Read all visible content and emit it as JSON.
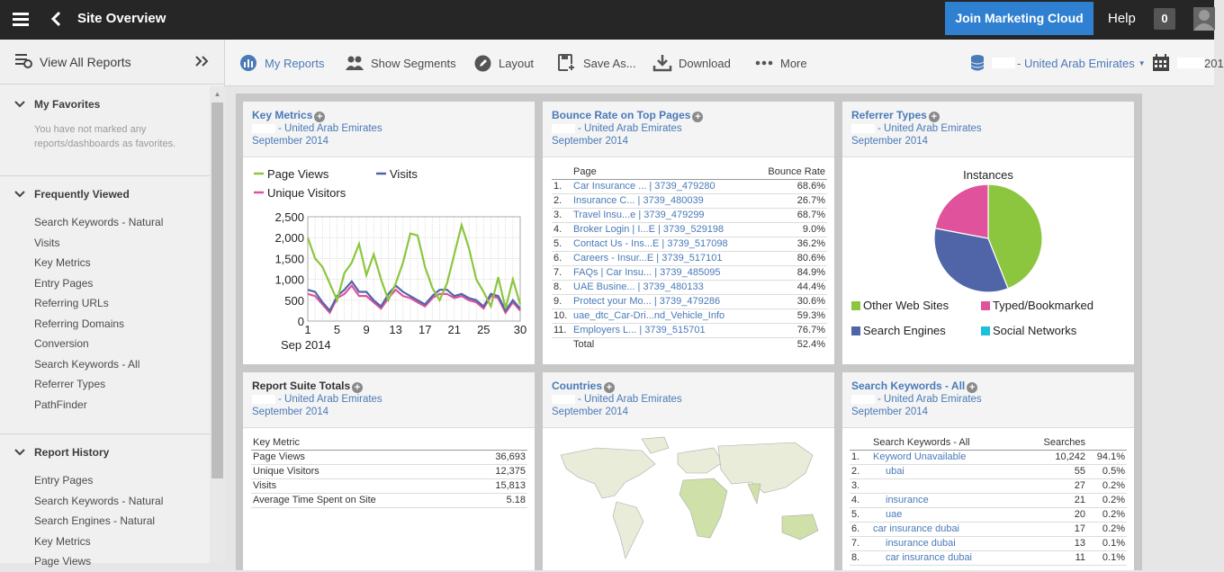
{
  "topbar": {
    "title": "Site Overview",
    "cta": "Join Marketing Cloud",
    "help": "Help",
    "badge": "0"
  },
  "sidebar": {
    "view_all": "View All Reports",
    "favorites": {
      "title": "My Favorites",
      "empty": "You have not marked any reports/dashboards as favorites."
    },
    "frequent": {
      "title": "Frequently Viewed",
      "items": [
        "Search Keywords - Natural",
        "Visits",
        "Key Metrics",
        "Entry Pages",
        "Referring URLs",
        "Referring Domains",
        "Conversion",
        "Search Keywords - All",
        "Referrer Types",
        "PathFinder"
      ]
    },
    "history": {
      "title": "Report History",
      "items": [
        "Entry Pages",
        "Search Keywords - Natural",
        "Search Engines - Natural",
        "Key Metrics",
        "Page Views"
      ]
    }
  },
  "toolbar": {
    "my_reports": "My Reports",
    "segments": "Show Segments",
    "layout": "Layout",
    "save": "Save As...",
    "download": "Download",
    "more": "More",
    "suite": "- United Arab Emirates",
    "date": "201"
  },
  "common": {
    "suite": "- United Arab Emirates",
    "period": "September 2014"
  },
  "panels": {
    "key_metrics": {
      "title": "Key Metrics",
      "legend": [
        "Page Views",
        "Visits",
        "Unique Visitors"
      ],
      "month_label": "Sep 2014"
    },
    "bounce": {
      "title": "Bounce Rate on Top Pages",
      "col_page": "Page",
      "col_rate": "Bounce Rate",
      "total_label": "Total",
      "total_value": "52.4%",
      "rows": [
        [
          "1.",
          "Car Insurance ... | 3739_479280",
          "68.6%"
        ],
        [
          "2.",
          "Insurance C... | 3739_480039",
          "26.7%"
        ],
        [
          "3.",
          "Travel Insu...e | 3739_479299",
          "68.7%"
        ],
        [
          "4.",
          "Broker Login | I...E | 3739_529198",
          "9.0%"
        ],
        [
          "5.",
          "Contact Us - Ins...E | 3739_517098",
          "36.2%"
        ],
        [
          "6.",
          "Careers - Insur...E | 3739_517101",
          "80.6%"
        ],
        [
          "7.",
          "FAQs | Car Insu... | 3739_485095",
          "84.9%"
        ],
        [
          "8.",
          "UAE Busine... | 3739_480133",
          "44.4%"
        ],
        [
          "9.",
          "Protect your Mo... | 3739_479286",
          "30.6%"
        ],
        [
          "10.",
          "uae_dtc_Car-Dri...nd_Vehicle_Info",
          "59.3%"
        ],
        [
          "11.",
          "Employers L... | 3739_515701",
          "76.7%"
        ]
      ]
    },
    "referrer": {
      "title": "Referrer Types",
      "pie_title": "Instances",
      "legend": [
        "Other Web Sites",
        "Typed/Bookmarked",
        "Search Engines",
        "Social Networks"
      ]
    },
    "totals": {
      "title": "Report Suite Totals",
      "col": "Key Metric",
      "rows": [
        [
          "Page Views",
          "36,693"
        ],
        [
          "Unique Visitors",
          "12,375"
        ],
        [
          "Visits",
          "15,813"
        ],
        [
          "Average Time Spent on Site",
          "5.18"
        ]
      ]
    },
    "countries": {
      "title": "Countries"
    },
    "keywords": {
      "title": "Search Keywords - All",
      "col_kw": "Search Keywords - All",
      "col_s": "Searches",
      "rows": [
        [
          "1.",
          "Keyword Unavailable",
          "10,242",
          "94.1%"
        ],
        [
          "2.",
          "ubai",
          "55",
          "0.5%"
        ],
        [
          "3.",
          "",
          "27",
          "0.2%"
        ],
        [
          "4.",
          "insurance",
          "21",
          "0.2%"
        ],
        [
          "5.",
          "uae",
          "20",
          "0.2%"
        ],
        [
          "6.",
          "car insurance dubai",
          "17",
          "0.2%"
        ],
        [
          "7.",
          "insurance dubai",
          "13",
          "0.1%"
        ],
        [
          "8.",
          "car insurance dubai",
          "11",
          "0.1%"
        ]
      ]
    }
  },
  "chart_data": [
    {
      "type": "line",
      "x": [
        1,
        2,
        3,
        4,
        5,
        6,
        7,
        8,
        9,
        10,
        11,
        12,
        13,
        14,
        15,
        16,
        17,
        18,
        19,
        20,
        21,
        22,
        23,
        24,
        25,
        26,
        27,
        28,
        29,
        30
      ],
      "xticks": [
        1,
        5,
        9,
        13,
        17,
        21,
        25,
        30
      ],
      "ylim": [
        0,
        2500
      ],
      "yticks": [
        "0",
        "500",
        "1,000",
        "1,500",
        "2,000",
        "2,500"
      ],
      "series": [
        {
          "name": "Page Views",
          "color": "#8cc63e",
          "values": [
            2000,
            1500,
            1300,
            900,
            500,
            1150,
            1400,
            1850,
            1100,
            1600,
            1000,
            500,
            900,
            1400,
            2100,
            2050,
            1300,
            800,
            500,
            900,
            1600,
            2300,
            1750,
            1000,
            700,
            350,
            1050,
            300,
            1000,
            400
          ]
        },
        {
          "name": "Visits",
          "color": "#5065a8",
          "values": [
            750,
            700,
            450,
            250,
            600,
            750,
            950,
            700,
            700,
            500,
            350,
            650,
            850,
            700,
            600,
            500,
            400,
            600,
            750,
            750,
            600,
            650,
            550,
            500,
            350,
            650,
            600,
            250,
            500,
            300
          ]
        },
        {
          "name": "Unique Visitors",
          "color": "#e0529c",
          "values": [
            650,
            600,
            400,
            200,
            550,
            650,
            850,
            600,
            600,
            450,
            300,
            550,
            750,
            600,
            550,
            450,
            350,
            550,
            650,
            650,
            550,
            600,
            500,
            450,
            300,
            600,
            550,
            200,
            450,
            250
          ]
        }
      ]
    },
    {
      "type": "pie",
      "title": "Instances",
      "slices": [
        {
          "name": "Other Web Sites",
          "value": 44,
          "color": "#8cc63e"
        },
        {
          "name": "Search Engines",
          "value": 34,
          "color": "#5065a8"
        },
        {
          "name": "Typed/Bookmarked",
          "value": 22,
          "color": "#e0529c"
        },
        {
          "name": "Social Networks",
          "value": 0,
          "color": "#1cc1d9"
        }
      ]
    }
  ]
}
